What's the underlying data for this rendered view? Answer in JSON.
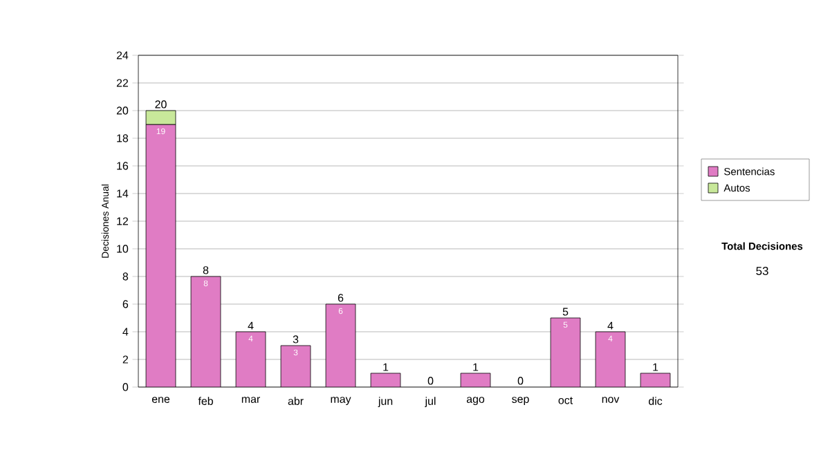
{
  "chart_data": {
    "type": "bar",
    "stacked": true,
    "ylabel": "Decisiones Anual",
    "categories": [
      "ene",
      "feb",
      "mar",
      "abr",
      "may",
      "jun",
      "jul",
      "ago",
      "sep",
      "oct",
      "nov",
      "dic"
    ],
    "series": [
      {
        "name": "Sentencias",
        "color": "#e07cc4",
        "values": [
          19,
          8,
          4,
          3,
          6,
          1,
          0,
          1,
          0,
          5,
          4,
          1
        ],
        "value_labels": [
          "19",
          "8",
          "4",
          "3",
          "6",
          null,
          null,
          null,
          null,
          "5",
          "4",
          null
        ]
      },
      {
        "name": "Autos",
        "color": "#c8e89a",
        "values": [
          1,
          0,
          0,
          0,
          0,
          0,
          0,
          0,
          0,
          0,
          0,
          0
        ]
      }
    ],
    "totals": [
      "20",
      "8",
      "4",
      "3",
      "6",
      "1",
      "0",
      "1",
      "0",
      "5",
      "4",
      "1"
    ],
    "ylim": [
      0,
      24
    ],
    "yticks": [
      0,
      2,
      4,
      6,
      8,
      10,
      12,
      14,
      16,
      18,
      20,
      22,
      24
    ],
    "grid": "y",
    "legend": "right",
    "annotations": [
      "Total Decisiones",
      "53"
    ]
  }
}
